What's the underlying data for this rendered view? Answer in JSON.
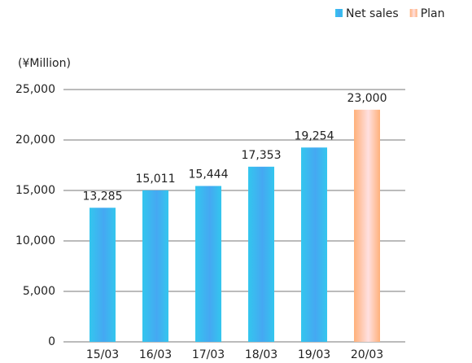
{
  "chart_data": {
    "type": "bar",
    "y_axis_label": "(¥Million)",
    "categories": [
      "15/03",
      "16/03",
      "17/03",
      "18/03",
      "19/03",
      "20/03"
    ],
    "series": [
      {
        "name": "Net sales",
        "color": "#33c6ee",
        "values": [
          13285,
          15011,
          15444,
          17353,
          19254,
          null
        ],
        "value_labels": [
          "13,285",
          "15,011",
          "15,444",
          "17,353",
          "19,254",
          null
        ]
      },
      {
        "name": "Plan",
        "color": "#ffb07a",
        "values": [
          null,
          null,
          null,
          null,
          null,
          23000
        ],
        "value_labels": [
          null,
          null,
          null,
          null,
          null,
          "23,000"
        ]
      }
    ],
    "ylim": [
      0,
      25000
    ],
    "yticks": [
      0,
      {
        "value": 5000,
        "label": "5,000"
      },
      {
        "value": 10000,
        "label": "10,000"
      },
      {
        "value": 15000,
        "label": "15,000"
      },
      {
        "value": 20000,
        "label": "20,000"
      },
      {
        "value": 25000,
        "label": "25,000"
      }
    ],
    "grid": true,
    "legend": "top-right"
  }
}
